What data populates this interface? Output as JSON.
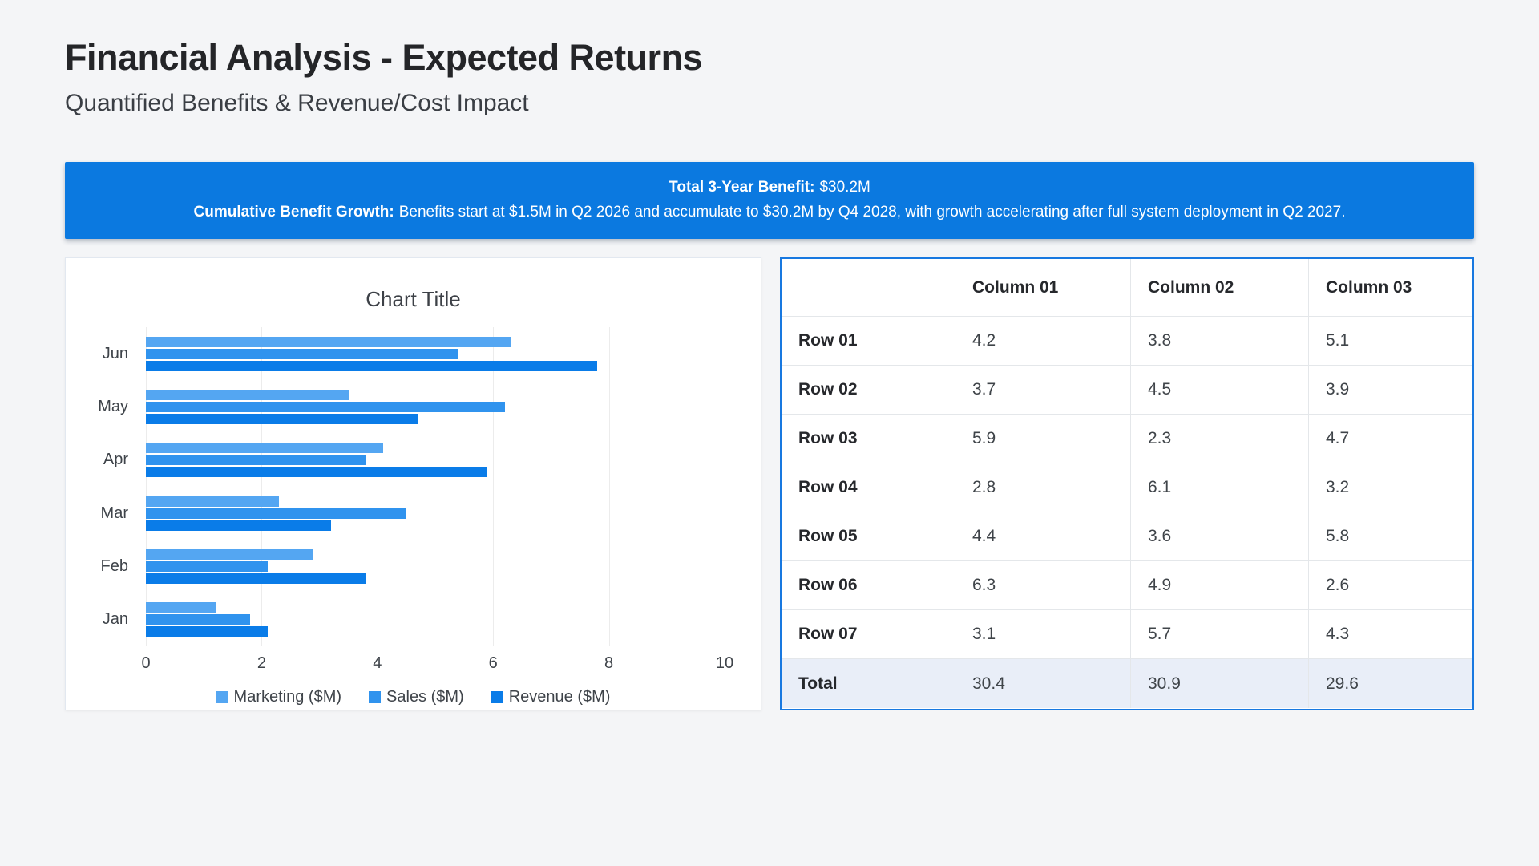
{
  "page": {
    "title": "Financial Analysis - Expected Returns",
    "subtitle": "Quantified Benefits & Revenue/Cost Impact"
  },
  "banner": {
    "line1_label": "Total 3-Year Benefit:",
    "line1_value": "$30.2M",
    "line2_label": "Cumulative Benefit Growth:",
    "line2_text": "Benefits start at $1.5M in Q2 2026 and accumulate to $30.2M by Q4 2028, with growth accelerating after full system deployment in Q2 2027.",
    "bg_color": "#0b79e0",
    "text_color": "#ffffff"
  },
  "chart_data": [
    {
      "type": "bar",
      "orientation": "horizontal",
      "title": "Chart Title",
      "categories": [
        "Jun",
        "May",
        "Apr",
        "Mar",
        "Feb",
        "Jan"
      ],
      "series": [
        {
          "name": "Marketing ($M)",
          "color": "#54a6f2",
          "values": [
            6.3,
            3.5,
            4.1,
            2.3,
            2.9,
            1.2
          ]
        },
        {
          "name": "Sales ($M)",
          "color": "#3093ee",
          "values": [
            5.4,
            6.2,
            3.8,
            4.5,
            2.1,
            1.8
          ]
        },
        {
          "name": "Revenue ($M)",
          "color": "#0a7ce8",
          "values": [
            7.8,
            4.7,
            5.9,
            3.2,
            3.8,
            2.1
          ]
        }
      ],
      "xlim": [
        0,
        10
      ],
      "xticks": [
        0,
        2,
        4,
        6,
        8,
        10
      ],
      "grid": true,
      "legend_position": "bottom"
    },
    {
      "type": "table",
      "columns": [
        "",
        "Column 01",
        "Column 02",
        "Column 03"
      ],
      "rows": [
        [
          "Row 01",
          "4.2",
          "3.8",
          "5.1"
        ],
        [
          "Row 02",
          "3.7",
          "4.5",
          "3.9"
        ],
        [
          "Row 03",
          "5.9",
          "2.3",
          "4.7"
        ],
        [
          "Row 04",
          "2.8",
          "6.1",
          "3.2"
        ],
        [
          "Row 05",
          "4.4",
          "3.6",
          "5.8"
        ],
        [
          "Row 06",
          "6.3",
          "4.9",
          "2.6"
        ],
        [
          "Row 07",
          "3.1",
          "5.7",
          "4.3"
        ]
      ],
      "total_row": [
        "Total",
        "30.4",
        "30.9",
        "29.6"
      ]
    }
  ]
}
